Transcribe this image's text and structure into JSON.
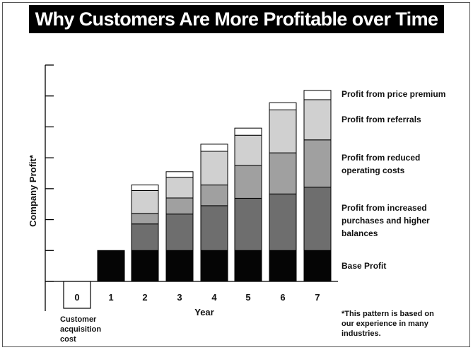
{
  "chart_data": {
    "type": "bar",
    "stacked": true,
    "title": "Why Customers Are More Profitable over Time",
    "xlabel": "Year",
    "ylabel": "Company Profit*",
    "categories": [
      "0",
      "1",
      "2",
      "3",
      "4",
      "5",
      "6",
      "7"
    ],
    "ylim": [
      0,
      7
    ],
    "grid": false,
    "series": [
      {
        "name": "Base Profit",
        "color": "#050505",
        "values": [
          0,
          1,
          1,
          1,
          1,
          1,
          1,
          1
        ]
      },
      {
        "name": "Profit from increased purchases and higher balances",
        "color": "#6e6e6e",
        "values": [
          0,
          0,
          0.86,
          1.18,
          1.45,
          1.69,
          1.83,
          2.05
        ]
      },
      {
        "name": "Profit from reduced operating costs",
        "color": "#a0a0a0",
        "values": [
          0,
          0,
          0.34,
          0.52,
          0.67,
          1.06,
          1.33,
          1.53
        ]
      },
      {
        "name": "Profit from referrals",
        "color": "#d0d0d0",
        "values": [
          0,
          0,
          0.74,
          0.67,
          1.09,
          0.98,
          1.39,
          1.3
        ]
      },
      {
        "name": "Profit from price premium",
        "color": "#ffffff",
        "values": [
          0,
          0,
          0.18,
          0.18,
          0.23,
          0.23,
          0.23,
          0.3
        ]
      }
    ],
    "legend_position": "right",
    "acquisition_cost": {
      "year": "0",
      "label": "Customer acquisition cost"
    }
  },
  "footnote": "*This pattern is based on our experience in many industries."
}
